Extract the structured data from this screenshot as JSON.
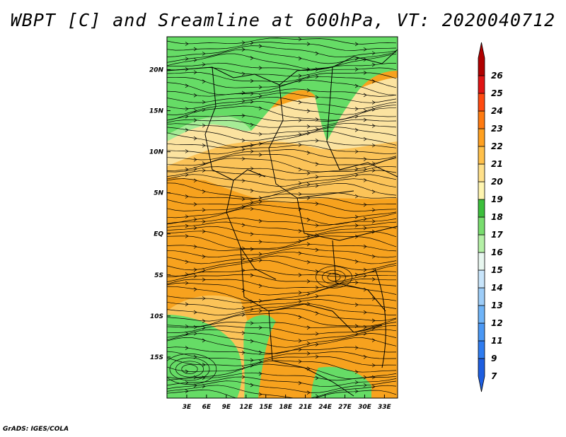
{
  "title": "WBPT [C] and Sreamline at 600hPa, VT: 2020040712",
  "footer": "GrADS: IGES/COLA",
  "map": {
    "x_ticks": [
      "3E",
      "6E",
      "9E",
      "12E",
      "15E",
      "18E",
      "21E",
      "24E",
      "27E",
      "30E",
      "33E"
    ],
    "y_ticks": [
      "20N",
      "15N",
      "10N",
      "5N",
      "EQ",
      "5S",
      "10S",
      "15S"
    ],
    "lon_range": [
      0,
      35
    ],
    "lat_range": [
      -20,
      24
    ]
  },
  "colorbar": {
    "labels": [
      "7",
      "9",
      "11",
      "12",
      "13",
      "14",
      "15",
      "16",
      "17",
      "18",
      "19",
      "20",
      "21",
      "22",
      "23",
      "24",
      "25",
      "26"
    ],
    "colors": [
      "#1e5ee0",
      "#2f7cf0",
      "#4a98f5",
      "#6fb4f8",
      "#9dcdf8",
      "#c8e5fb",
      "#e8f7f0",
      "#b4f0a6",
      "#78dd6e",
      "#3cbf3c",
      "#fff5b0",
      "#ffe08a",
      "#ffc04a",
      "#ffa020",
      "#ff7a10",
      "#ff4a10",
      "#e01414",
      "#b00000"
    ]
  },
  "colors": {
    "orange": "#f7a21e",
    "light_orange": "#fbc358",
    "pale_yellow": "#fbe3a0",
    "green": "#66dc66",
    "light_green": "#a6ec96"
  }
}
